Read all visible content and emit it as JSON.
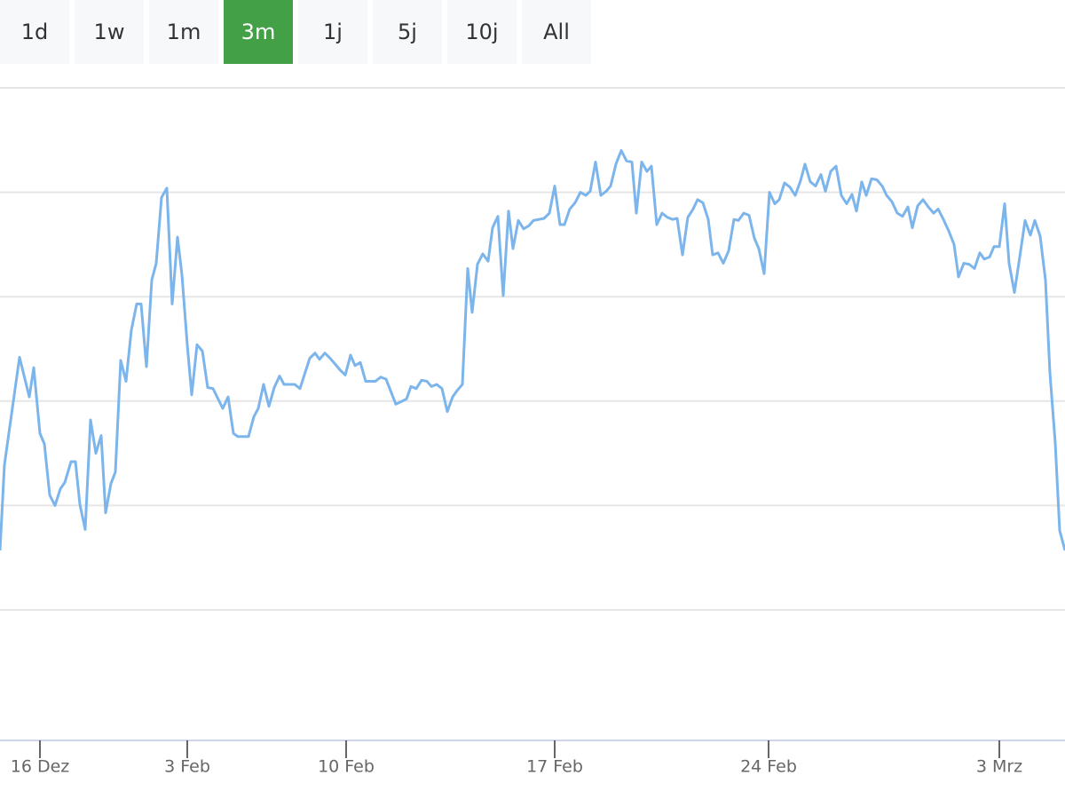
{
  "range_selector": {
    "options": [
      "1d",
      "1w",
      "1m",
      "3m",
      "1j",
      "5j",
      "10j",
      "All"
    ],
    "selected": 3
  },
  "chart_data": {
    "type": "line",
    "color": "#7cb5ec",
    "grid": true,
    "xlim": [
      0,
      120
    ],
    "ylim": [
      -0.25,
      6
    ],
    "yticks": [
      1,
      2,
      3,
      4,
      5,
      6
    ],
    "xticks": [
      {
        "value": 4.5,
        "label": "16 Dez"
      },
      {
        "value": 21.1,
        "label": "3 Feb"
      },
      {
        "value": 39,
        "label": "10 Feb"
      },
      {
        "value": 62.5,
        "label": "17 Feb"
      },
      {
        "value": 86.6,
        "label": "24 Feb"
      },
      {
        "value": 112.6,
        "label": "3 Mrz"
      }
    ],
    "x": [
      0,
      0.5,
      2.2,
      3.3,
      3.8,
      4.5,
      5.0,
      5.6,
      6.2,
      6.8,
      7.3,
      8.0,
      8.5,
      9.0,
      9.6,
      10.2,
      10.8,
      11.4,
      11.9,
      12.5,
      13.0,
      13.6,
      14.2,
      14.8,
      15.4,
      15.9,
      16.5,
      17.1,
      17.6,
      18.2,
      18.8,
      19.4,
      20.0,
      20.5,
      21.1,
      21.6,
      22.2,
      22.8,
      23.4,
      24.0,
      25.1,
      25.7,
      26.3,
      26.8,
      28.0,
      28.6,
      29.1,
      29.7,
      30.3,
      30.9,
      31.5,
      32.0,
      33.2,
      33.8,
      34.9,
      35.5,
      36.0,
      36.6,
      37.2,
      38.3,
      38.9,
      39.5,
      40.0,
      40.6,
      41.2,
      42.3,
      42.9,
      43.5,
      44.6,
      45.8,
      46.3,
      46.9,
      47.5,
      48.1,
      48.6,
      49.2,
      49.8,
      50.4,
      51.0,
      51.5,
      52.1,
      52.7,
      53.2,
      53.8,
      54.4,
      55.0,
      55.5,
      56.1,
      56.7,
      57.3,
      57.8,
      58.4,
      59.0,
      59.6,
      60.1,
      61.3,
      61.9,
      62.5,
      63.1,
      63.6,
      64.2,
      64.8,
      65.4,
      66.0,
      66.5,
      67.1,
      67.7,
      68.3,
      68.8,
      69.4,
      70.0,
      70.6,
      71.2,
      71.7,
      72.3,
      72.9,
      73.4,
      74.0,
      74.6,
      75.2,
      75.8,
      76.3,
      76.9,
      77.5,
      78.1,
      78.6,
      79.2,
      79.8,
      80.3,
      80.9,
      81.5,
      82.1,
      82.7,
      83.2,
      83.8,
      84.4,
      85.0,
      85.5,
      86.1,
      86.7,
      87.3,
      87.8,
      88.4,
      89.0,
      89.6,
      90.2,
      90.7,
      91.3,
      91.9,
      92.5,
      93.0,
      93.6,
      94.2,
      94.8,
      95.4,
      96.0,
      96.5,
      97.1,
      97.6,
      98.2,
      98.8,
      99.4,
      99.9,
      100.5,
      101.1,
      101.7,
      102.3,
      102.8,
      103.4,
      104.0,
      104.6,
      105.2,
      105.7,
      106.3,
      106.9,
      107.5,
      108.0,
      108.6,
      109.2,
      109.8,
      110.4,
      110.9,
      111.5,
      112.0,
      112.6,
      113.2,
      113.7,
      114.3,
      114.9,
      115.5,
      116.1,
      116.6,
      117.2,
      117.8,
      118.3,
      118.9,
      119.4,
      120.0
    ],
    "values": [
      1.57,
      2.39,
      3.42,
      3.04,
      3.32,
      2.69,
      2.59,
      2.1,
      2.0,
      2.16,
      2.22,
      2.42,
      2.42,
      2.01,
      1.77,
      2.82,
      2.5,
      2.67,
      1.93,
      2.21,
      2.32,
      3.39,
      3.19,
      3.68,
      3.93,
      3.93,
      3.33,
      4.16,
      4.32,
      4.95,
      5.04,
      3.93,
      4.57,
      4.21,
      3.54,
      3.06,
      3.54,
      3.48,
      3.13,
      3.12,
      2.93,
      3.04,
      2.69,
      2.66,
      2.66,
      2.85,
      2.93,
      3.16,
      2.95,
      3.13,
      3.24,
      3.16,
      3.16,
      3.12,
      3.41,
      3.46,
      3.4,
      3.46,
      3.41,
      3.3,
      3.25,
      3.44,
      3.34,
      3.37,
      3.19,
      3.19,
      3.23,
      3.21,
      2.97,
      3.02,
      3.14,
      3.12,
      3.2,
      3.19,
      3.14,
      3.16,
      3.12,
      2.9,
      3.04,
      3.1,
      3.16,
      4.27,
      3.85,
      4.31,
      4.41,
      4.34,
      4.66,
      4.77,
      4.01,
      4.82,
      4.46,
      4.73,
      4.65,
      4.68,
      4.73,
      4.75,
      4.8,
      5.06,
      4.69,
      4.69,
      4.84,
      4.9,
      5.0,
      4.97,
      5.01,
      5.29,
      4.97,
      5.01,
      5.06,
      5.27,
      5.4,
      5.3,
      5.29,
      4.8,
      5.29,
      5.2,
      5.25,
      4.69,
      4.8,
      4.76,
      4.74,
      4.75,
      4.4,
      4.76,
      4.84,
      4.93,
      4.9,
      4.74,
      4.4,
      4.42,
      4.32,
      4.44,
      4.74,
      4.73,
      4.8,
      4.78,
      4.56,
      4.46,
      4.22,
      5.0,
      4.89,
      4.93,
      5.09,
      5.05,
      4.97,
      5.11,
      5.27,
      5.1,
      5.06,
      5.17,
      5.01,
      5.2,
      5.25,
      4.97,
      4.89,
      4.98,
      4.82,
      5.1,
      4.97,
      5.13,
      5.12,
      5.06,
      4.97,
      4.91,
      4.8,
      4.77,
      4.86,
      4.66,
      4.87,
      4.93,
      4.86,
      4.8,
      4.84,
      4.74,
      4.63,
      4.5,
      4.19,
      4.32,
      4.31,
      4.27,
      4.42,
      4.36,
      4.38,
      4.48,
      4.48,
      4.89,
      4.32,
      4.04,
      4.38,
      4.73,
      4.59,
      4.73,
      4.58,
      4.16,
      3.27,
      2.6,
      1.76,
      1.57
    ]
  }
}
